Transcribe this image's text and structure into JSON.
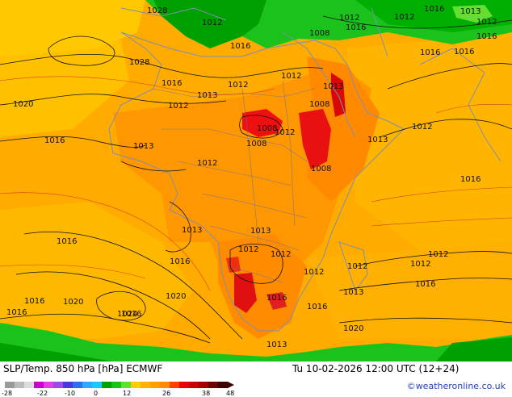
{
  "footer": {
    "title": "SLP/Temp. 850 hPa [hPa] ECMWF",
    "valid_time": "Tu 10-02-2026 12:00 UTC (12+24)",
    "credit": "©weatheronline.co.uk"
  },
  "legend": {
    "ticks": [
      "-28",
      "-22",
      "-10",
      "0",
      "12",
      "26",
      "38",
      "48"
    ],
    "colors": [
      "#9a9a9a",
      "#bcbcbc",
      "#dcdcdc",
      "#cc00cc",
      "#e040e0",
      "#9b4de0",
      "#4b38d8",
      "#2f6fe8",
      "#33a6ff",
      "#19c8ff",
      "#00a000",
      "#1cc21c",
      "#66dd33",
      "#ffcc00",
      "#ffb300",
      "#ffa000",
      "#ff8c00",
      "#ff4000",
      "#ee0000",
      "#cc0000",
      "#a00000",
      "#6a0000",
      "#3c0000"
    ]
  },
  "isobar_labels": [
    "1028",
    "1012",
    "1016",
    "1012",
    "1016",
    "1016",
    "1012",
    "1008",
    "1012",
    "1016",
    "1016",
    "1013",
    "1028",
    "1016",
    "1012",
    "1013",
    "1012",
    "1012",
    "1008",
    "1020",
    "1013",
    "1016",
    "1012",
    "1008",
    "1013",
    "1012",
    "1008",
    "1012",
    "1016",
    "1013",
    "1016",
    "1012",
    "1016",
    "1013",
    "1013",
    "1012",
    "1008",
    "1012",
    "1013",
    "1012",
    "1016",
    "1012",
    "1016",
    "1016",
    "1016",
    "1020",
    "1016",
    "1020",
    "1024",
    "1016",
    "1013",
    "1020",
    "1016",
    "1012"
  ]
}
